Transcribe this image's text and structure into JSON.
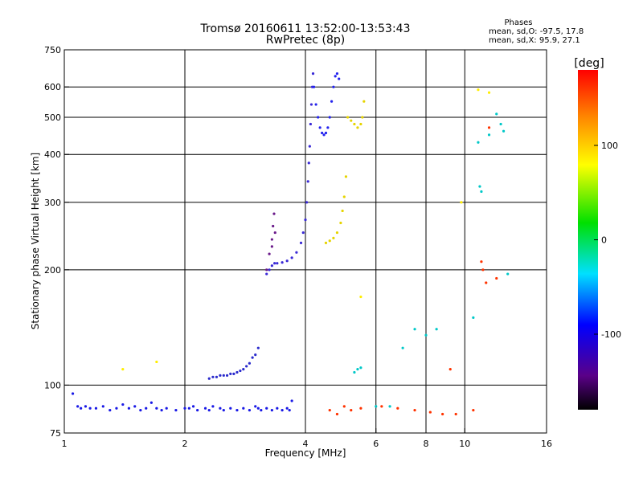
{
  "chart_data": {
    "type": "scatter",
    "title": "Tromsø 20160611 13:52:00-13:53:43",
    "subtitle": "RwPretec (8p)",
    "xlabel": "Frequency [MHz]",
    "ylabel": "Stationary phase Virtual Height [km]",
    "x_scale": "log",
    "y_scale": "log",
    "xlim": [
      1,
      16
    ],
    "ylim": [
      75,
      750
    ],
    "x_ticks": [
      1,
      2,
      4,
      6,
      8,
      10,
      16
    ],
    "x_tick_labels": [
      "1",
      "2",
      "4",
      "6",
      "8",
      "10",
      "16"
    ],
    "y_ticks": [
      75,
      100,
      200,
      300,
      400,
      500,
      600,
      750
    ],
    "y_tick_labels": [
      "75",
      "100",
      "200",
      "300",
      "400",
      "500",
      "600",
      "750"
    ],
    "grid": true,
    "stats": {
      "heading": "Phases",
      "line1": "mean, sd,O: -97.5, 17.8",
      "line2": "mean, sd,X:  95.9, 27.1"
    },
    "colorbar": {
      "label": "[deg]",
      "range": [
        -180,
        180
      ],
      "ticks": [
        100,
        0,
        -100
      ],
      "tick_labels": [
        "100",
        "0",
        "-100"
      ]
    },
    "series": [
      {
        "color": "#1a1ae6",
        "description": "E-layer echoes ~85-95 km",
        "points": [
          [
            1.05,
            95
          ],
          [
            1.08,
            88
          ],
          [
            1.1,
            87
          ],
          [
            1.13,
            88
          ],
          [
            1.16,
            87
          ],
          [
            1.2,
            87
          ],
          [
            1.25,
            88
          ],
          [
            1.3,
            86
          ],
          [
            1.35,
            87
          ],
          [
            1.4,
            89
          ],
          [
            1.45,
            87
          ],
          [
            1.5,
            88
          ],
          [
            1.55,
            86
          ],
          [
            1.6,
            87
          ],
          [
            1.65,
            90
          ],
          [
            1.7,
            87
          ],
          [
            1.75,
            86
          ],
          [
            1.8,
            87
          ],
          [
            1.9,
            86
          ],
          [
            2.0,
            87
          ],
          [
            2.05,
            87
          ],
          [
            2.1,
            88
          ],
          [
            2.15,
            86
          ],
          [
            2.25,
            87
          ],
          [
            2.3,
            86
          ],
          [
            2.35,
            88
          ],
          [
            2.45,
            87
          ],
          [
            2.5,
            86
          ],
          [
            2.6,
            87
          ],
          [
            2.7,
            86
          ],
          [
            2.8,
            87
          ],
          [
            2.9,
            86
          ],
          [
            3.0,
            88
          ],
          [
            3.05,
            87
          ],
          [
            3.1,
            86
          ],
          [
            3.2,
            87
          ],
          [
            3.3,
            86
          ],
          [
            3.4,
            87
          ],
          [
            3.5,
            86
          ],
          [
            3.6,
            87
          ],
          [
            3.65,
            86
          ],
          [
            3.7,
            91
          ]
        ]
      },
      {
        "color": "#2a2acc",
        "description": "Es/E trace 104-125 km",
        "points": [
          [
            2.3,
            104
          ],
          [
            2.35,
            105
          ],
          [
            2.4,
            105
          ],
          [
            2.45,
            106
          ],
          [
            2.5,
            106
          ],
          [
            2.55,
            106
          ],
          [
            2.6,
            107
          ],
          [
            2.65,
            107
          ],
          [
            2.7,
            108
          ],
          [
            2.75,
            109
          ],
          [
            2.8,
            110
          ],
          [
            2.85,
            112
          ],
          [
            2.9,
            114
          ],
          [
            2.95,
            118
          ],
          [
            3.0,
            120
          ],
          [
            3.05,
            125
          ]
        ]
      },
      {
        "color": "#3a2ad6",
        "description": "F1 trace (O)",
        "points": [
          [
            3.2,
            195
          ],
          [
            3.25,
            200
          ],
          [
            3.3,
            205
          ],
          [
            3.35,
            208
          ],
          [
            3.4,
            208
          ],
          [
            3.5,
            209
          ],
          [
            3.6,
            211
          ],
          [
            3.7,
            215
          ],
          [
            3.8,
            222
          ],
          [
            3.9,
            235
          ],
          [
            3.95,
            250
          ],
          [
            4.0,
            270
          ],
          [
            4.03,
            300
          ],
          [
            4.06,
            340
          ],
          [
            4.08,
            380
          ],
          [
            4.1,
            420
          ],
          [
            4.12,
            480
          ],
          [
            4.14,
            540
          ],
          [
            4.16,
            600
          ],
          [
            4.18,
            650
          ]
        ]
      },
      {
        "color": "#6a1a8a",
        "description": "F1 cusp (O)",
        "points": [
          [
            3.2,
            200
          ],
          [
            3.25,
            220
          ],
          [
            3.3,
            240
          ],
          [
            3.32,
            260
          ],
          [
            3.34,
            280
          ],
          [
            3.36,
            250
          ],
          [
            3.3,
            230
          ]
        ]
      },
      {
        "color": "#2424ee",
        "description": "F2 trace (O)",
        "points": [
          [
            4.2,
            600
          ],
          [
            4.25,
            540
          ],
          [
            4.3,
            500
          ],
          [
            4.35,
            470
          ],
          [
            4.4,
            455
          ],
          [
            4.45,
            450
          ],
          [
            4.5,
            455
          ],
          [
            4.55,
            470
          ],
          [
            4.6,
            500
          ],
          [
            4.65,
            550
          ],
          [
            4.7,
            600
          ],
          [
            4.75,
            640
          ],
          [
            4.8,
            650
          ],
          [
            4.85,
            630
          ]
        ]
      },
      {
        "color": "#e6d400",
        "description": "X traces",
        "points": [
          [
            4.5,
            235
          ],
          [
            4.6,
            238
          ],
          [
            4.7,
            242
          ],
          [
            4.8,
            250
          ],
          [
            4.9,
            265
          ],
          [
            4.95,
            285
          ],
          [
            5.0,
            310
          ],
          [
            5.05,
            350
          ],
          [
            5.1,
            500
          ],
          [
            5.2,
            490
          ],
          [
            5.3,
            480
          ],
          [
            5.4,
            470
          ],
          [
            5.5,
            480
          ],
          [
            5.55,
            500
          ],
          [
            5.6,
            550
          ]
        ]
      },
      {
        "color": "#00c8c8",
        "description": "Scattered cyan echoes",
        "points": [
          [
            5.3,
            108
          ],
          [
            5.4,
            110
          ],
          [
            5.5,
            111
          ],
          [
            6.0,
            88
          ],
          [
            6.5,
            88
          ],
          [
            7.0,
            125
          ],
          [
            7.5,
            140
          ],
          [
            8.0,
            135
          ],
          [
            8.5,
            140
          ],
          [
            10.5,
            150
          ],
          [
            10.8,
            430
          ],
          [
            10.9,
            330
          ],
          [
            11.0,
            320
          ],
          [
            11.5,
            450
          ],
          [
            12.0,
            510
          ],
          [
            12.3,
            480
          ],
          [
            12.5,
            460
          ],
          [
            12.8,
            195
          ]
        ]
      },
      {
        "color": "#ff3300",
        "description": "Scattered red/orange echoes",
        "points": [
          [
            4.6,
            86
          ],
          [
            4.8,
            84
          ],
          [
            5.0,
            88
          ],
          [
            5.2,
            86
          ],
          [
            5.5,
            87
          ],
          [
            6.2,
            88
          ],
          [
            6.8,
            87
          ],
          [
            7.5,
            86
          ],
          [
            8.2,
            85
          ],
          [
            8.8,
            84
          ],
          [
            9.2,
            110
          ],
          [
            9.5,
            84
          ],
          [
            10.5,
            86
          ],
          [
            11.0,
            210
          ],
          [
            11.1,
            200
          ],
          [
            11.3,
            185
          ],
          [
            11.5,
            470
          ],
          [
            12.0,
            190
          ]
        ]
      },
      {
        "color": "#ffee00",
        "description": "Isolated yellow echoes",
        "points": [
          [
            1.4,
            110
          ],
          [
            1.7,
            115
          ],
          [
            10.8,
            590
          ],
          [
            11.5,
            580
          ],
          [
            5.5,
            170
          ],
          [
            9.8,
            300
          ]
        ]
      }
    ]
  }
}
